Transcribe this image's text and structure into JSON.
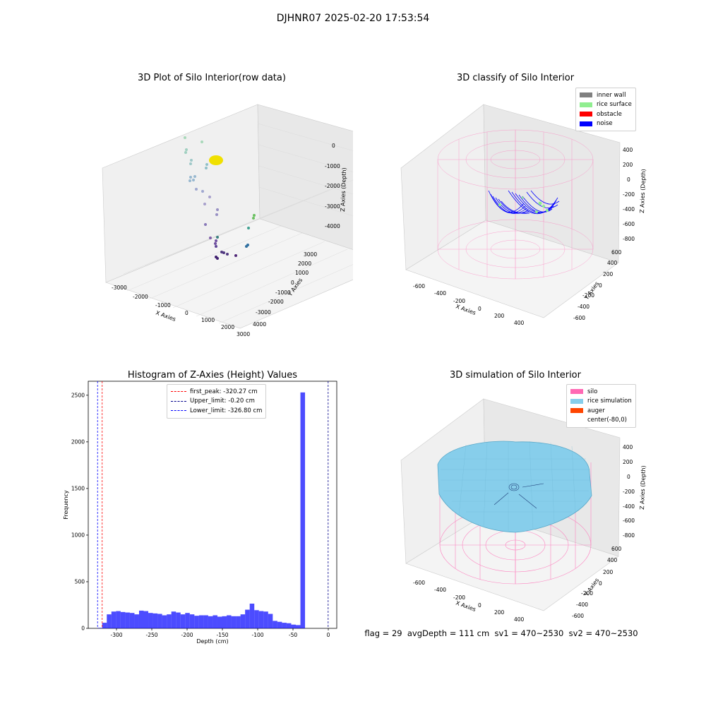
{
  "suptitle": "DJHNR07 2025-02-20 17:53:54",
  "panels": {
    "raw": {
      "title": "3D Plot of Silo Interior(row data)",
      "xlabel": "X Axies",
      "ylabel": "Y Axies",
      "zlabel": "Z Axies (Depth)",
      "xticks": [
        "-3000",
        "-2000",
        "-1000",
        "0",
        "1000",
        "2000",
        "3000",
        "4000"
      ],
      "yticks": [
        "-3000",
        "-2000",
        "-1000",
        "0",
        "1000",
        "2000",
        "3000"
      ],
      "zticks": [
        "0",
        "-1000",
        "-2000",
        "-3000",
        "-4000"
      ]
    },
    "classify": {
      "title": "3D classify of Silo Interior",
      "xlabel": "X Axies",
      "ylabel": "Y Axies",
      "zlabel": "Z Axies (Depth)",
      "xticks": [
        "-600",
        "-400",
        "-200",
        "0",
        "200",
        "400"
      ],
      "yticks": [
        "-600",
        "-400",
        "-200",
        "0",
        "200",
        "400",
        "600"
      ],
      "zticks": [
        "400",
        "200",
        "0",
        "-200",
        "-400",
        "-600",
        "-800"
      ],
      "legend": [
        {
          "label": "inner wall",
          "color": "#808080"
        },
        {
          "label": "rice surface",
          "color": "#90ee90"
        },
        {
          "label": "obstacle",
          "color": "#ff0000"
        },
        {
          "label": "noise",
          "color": "#0000ff"
        }
      ]
    },
    "simulation": {
      "title": "3D simulation of Silo Interior",
      "xlabel": "X Axies",
      "ylabel": "Y Axies",
      "zlabel": "Z Axies (Depth)",
      "xticks": [
        "-600",
        "-400",
        "-200",
        "0",
        "200",
        "400"
      ],
      "yticks": [
        "-600",
        "-400",
        "-200",
        "0",
        "200",
        "400",
        "600"
      ],
      "zticks": [
        "400",
        "200",
        "0",
        "-200",
        "-400",
        "-600",
        "-800"
      ],
      "legend": [
        {
          "label": "silo",
          "color": "#ff69b4"
        },
        {
          "label": "rice simulation",
          "color": "#87ceeb"
        },
        {
          "label": "auger",
          "color": "#ff4500"
        },
        {
          "label": "center(-80,0)",
          "color": "#ffffff"
        }
      ]
    }
  },
  "footer": "flag = 29  avgDepth = 111 cm  sv1 = 470~2530  sv2 = 470~2530",
  "chart_data": {
    "type": "bar",
    "title": "Histogram of Z-Axies (Height) Values",
    "xlabel": "Depth (cm)",
    "ylabel": "Frequency",
    "xlim": [
      -340,
      12
    ],
    "ylim": [
      0,
      2650
    ],
    "xticks": [
      -300,
      -250,
      -200,
      -150,
      -100,
      -50,
      0
    ],
    "yticks": [
      0,
      500,
      1000,
      1500,
      2000,
      2500
    ],
    "bar_color": "#0000ff",
    "bin_width": 6.53,
    "bin_start": -326.8,
    "values": [
      5,
      60,
      150,
      180,
      185,
      175,
      170,
      165,
      150,
      190,
      185,
      165,
      160,
      155,
      140,
      150,
      180,
      170,
      150,
      165,
      150,
      135,
      140,
      140,
      130,
      140,
      125,
      130,
      140,
      130,
      130,
      150,
      200,
      265,
      195,
      185,
      180,
      155,
      80,
      70,
      60,
      55,
      40,
      35,
      2530
    ],
    "lines": [
      {
        "label": "first_peak: -320.27 cm",
        "value": -320.27,
        "color": "#ff0000"
      },
      {
        "label": "Upper_limit: -0.20 cm",
        "value": -0.2,
        "color": "#00008b"
      },
      {
        "label": "Lower_limit: -326.80 cm",
        "value": -326.8,
        "color": "#0000ff"
      }
    ],
    "legend_position": "upper-center"
  }
}
